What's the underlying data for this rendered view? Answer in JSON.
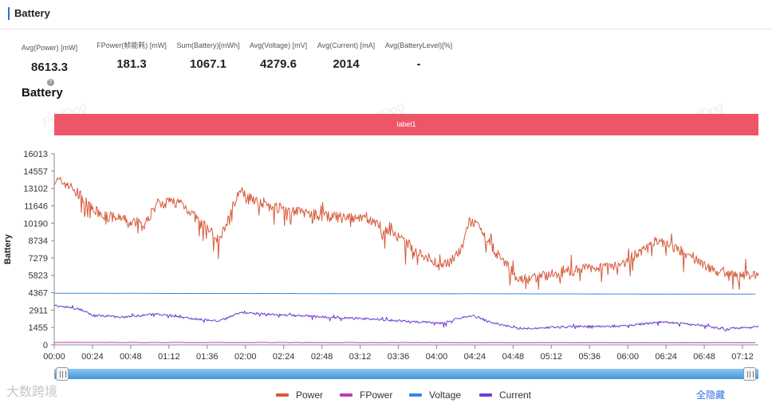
{
  "header": {
    "title": "Battery"
  },
  "stats": [
    {
      "label": "Avg(Power) [mW]",
      "value": "8613.3",
      "help": true
    },
    {
      "label": "FPower(帧能耗) [mW]",
      "value": "181.3"
    },
    {
      "label": "Sum(Battery)[mWh]",
      "value": "1067.1"
    },
    {
      "label": "Avg(Voltage) [mV]",
      "value": "4279.6"
    },
    {
      "label": "Avg(Current) [mA]",
      "value": "2014"
    },
    {
      "label": "Avg(BatteryLevel)[%]",
      "value": "-"
    }
  ],
  "chart_title": "Battery",
  "label_band": "label1",
  "watermark": "PerfDog",
  "brand": "大数跨境",
  "toggle_label": "全隐藏",
  "colors": {
    "power": "#d65a3c",
    "fpower": "#c13ab0",
    "voltage": "#3d85e0",
    "current": "#6e3fd0",
    "label_band": "#ee5566",
    "slider": "#3d95dc"
  },
  "chart_data": {
    "type": "line",
    "ylabel": "Battery",
    "yticks": [
      0,
      1455,
      2911,
      4367,
      5823,
      7279,
      8734,
      10190,
      11646,
      13102,
      14557,
      16013
    ],
    "ylim": [
      0,
      16013
    ],
    "xlim_minutes": [
      0,
      442
    ],
    "xticks": [
      "00:00",
      "00:24",
      "00:48",
      "01:12",
      "01:36",
      "02:00",
      "02:24",
      "02:48",
      "03:12",
      "03:36",
      "04:00",
      "04:24",
      "04:48",
      "05:12",
      "05:36",
      "06:00",
      "06:24",
      "06:48",
      "07:12"
    ],
    "legend_position": "bottom-center",
    "series": [
      {
        "name": "Power",
        "color": "#d65a3c",
        "x": [
          0,
          8,
          16,
          24,
          32,
          44,
          48,
          52,
          56,
          64,
          72,
          80,
          92,
          104,
          116,
          136,
          168,
          200,
          232,
          244,
          256,
          260,
          264,
          272,
          292,
          328,
          356,
          380,
          400,
          420,
          442
        ],
        "y": [
          13800,
          13500,
          12500,
          11300,
          10800,
          10500,
          10000,
          10500,
          9800,
          11800,
          12000,
          11900,
          10200,
          8800,
          12900,
          11600,
          10800,
          10400,
          7500,
          6500,
          8000,
          10300,
          10200,
          8600,
          5400,
          6300,
          6800,
          8700,
          7400,
          5800,
          5900
        ]
      },
      {
        "name": "FPower",
        "color": "#c13ab0",
        "x": [
          0,
          442
        ],
        "y": [
          200,
          185
        ]
      },
      {
        "name": "Voltage",
        "color": "#3d85e0",
        "x": [
          0,
          442
        ],
        "y": [
          4320,
          4250
        ]
      },
      {
        "name": "Current",
        "color": "#6e3fd0",
        "x": [
          0,
          16,
          24,
          44,
          64,
          80,
          104,
          116,
          136,
          168,
          200,
          232,
          244,
          256,
          264,
          272,
          292,
          328,
          356,
          380,
          400,
          420,
          442
        ],
        "y": [
          3300,
          3000,
          2500,
          2300,
          2600,
          2300,
          2000,
          2700,
          2550,
          2350,
          2150,
          1900,
          1800,
          2300,
          2400,
          1950,
          1350,
          1550,
          1550,
          1900,
          1750,
          1350,
          1500
        ]
      }
    ]
  },
  "slider": {
    "start": 0,
    "end": 100
  }
}
